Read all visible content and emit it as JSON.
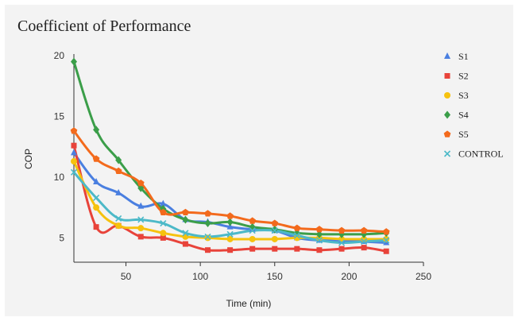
{
  "chart_data": {
    "type": "line",
    "title": "Coefficient of Performance",
    "xlabel": "Time (min)",
    "ylabel": "COP",
    "xlim": [
      15,
      250
    ],
    "ylim": [
      3,
      20
    ],
    "x_ticks": [
      50,
      100,
      150,
      200,
      250
    ],
    "y_ticks": [
      5,
      10,
      15,
      20
    ],
    "legend_position": "right",
    "grid": false,
    "x": [
      15,
      30,
      45,
      60,
      75,
      90,
      105,
      120,
      135,
      150,
      165,
      180,
      195,
      210,
      225
    ],
    "series": [
      {
        "name": "S1",
        "color": "#4a7fe0",
        "marker": "triangle",
        "values": [
          12.0,
          9.6,
          8.7,
          7.6,
          7.8,
          6.5,
          6.3,
          5.9,
          5.7,
          5.6,
          5.0,
          4.8,
          4.8,
          4.7,
          4.6
        ]
      },
      {
        "name": "S2",
        "color": "#e8433a",
        "marker": "square",
        "values": [
          12.6,
          5.9,
          6.0,
          5.1,
          5.0,
          4.5,
          4.0,
          4.0,
          4.1,
          4.1,
          4.1,
          4.0,
          4.1,
          4.2,
          3.9
        ]
      },
      {
        "name": "S3",
        "color": "#f6c20e",
        "marker": "circle",
        "values": [
          11.3,
          7.5,
          6.0,
          5.8,
          5.4,
          5.1,
          5.0,
          4.9,
          4.9,
          4.9,
          5.0,
          5.0,
          4.9,
          4.9,
          4.9
        ]
      },
      {
        "name": "S4",
        "color": "#3b9e49",
        "marker": "diamond",
        "values": [
          19.5,
          13.9,
          11.4,
          9.1,
          7.4,
          6.5,
          6.2,
          6.3,
          5.9,
          5.7,
          5.4,
          5.3,
          5.3,
          5.3,
          5.4
        ]
      },
      {
        "name": "S5",
        "color": "#f36a1c",
        "marker": "pentagon",
        "values": [
          13.8,
          11.5,
          10.5,
          9.5,
          7.1,
          7.1,
          7.0,
          6.8,
          6.4,
          6.2,
          5.8,
          5.7,
          5.6,
          5.6,
          5.5
        ]
      },
      {
        "name": "CONTROL",
        "color": "#4cb9c8",
        "marker": "x",
        "values": [
          10.4,
          8.3,
          6.6,
          6.5,
          6.2,
          5.4,
          5.1,
          5.3,
          5.6,
          5.6,
          5.2,
          4.8,
          4.6,
          4.7,
          4.8
        ]
      }
    ]
  }
}
